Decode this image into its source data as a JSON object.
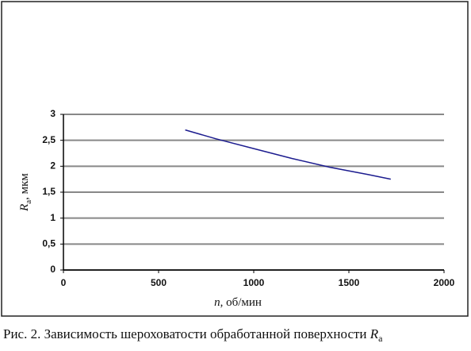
{
  "chart_data": {
    "type": "line",
    "x": [
      640,
      800,
      1000,
      1200,
      1400,
      1600,
      1720
    ],
    "series": [
      {
        "name": "Ra",
        "color": "#1c1c8f",
        "values": [
          2.7,
          2.53,
          2.34,
          2.15,
          1.98,
          1.84,
          1.75
        ]
      }
    ],
    "xlim": [
      0,
      2000
    ],
    "xticks": [
      0,
      500,
      1000,
      1500,
      2000
    ],
    "ylim": [
      0,
      3
    ],
    "yticks": [
      0,
      {
        "value": 0.5,
        "label": "0,5"
      },
      1,
      {
        "value": 1.5,
        "label": "1,5"
      },
      2,
      {
        "value": 2.5,
        "label": "2,5"
      },
      3
    ],
    "grid": true,
    "xlabel": {
      "symbol": "n",
      "unit": ", об/мин"
    },
    "ylabel": {
      "symbol": "R",
      "subscript": "a",
      "unit": ", мкм"
    },
    "caption": {
      "text": "Рис. 2. Зависимость шероховатости обработанной поверхности ",
      "symbol": "R",
      "subscript": "a"
    }
  }
}
